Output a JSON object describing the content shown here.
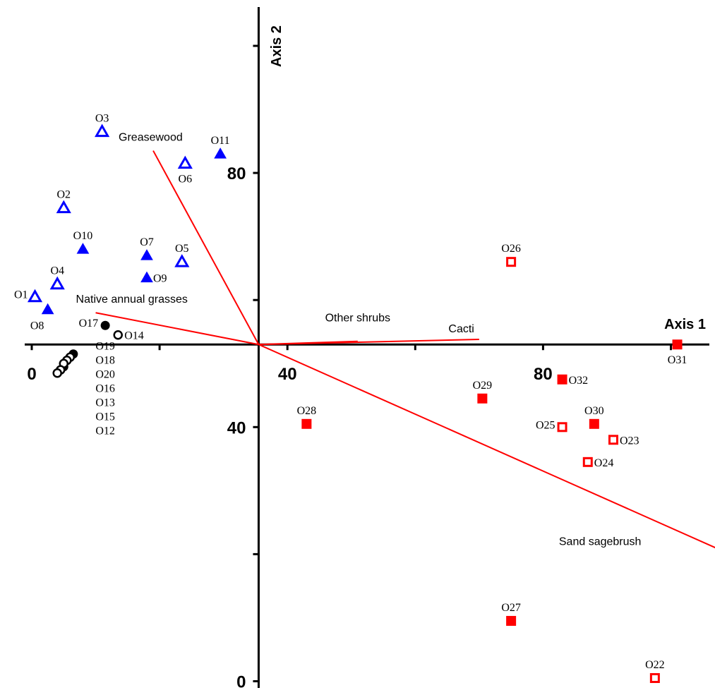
{
  "chart_data": {
    "type": "scatter",
    "title": "",
    "xlabel": "Axis 1",
    "ylabel": "Axis 2",
    "xlim": [
      -4,
      103
    ],
    "ylim": [
      -2,
      106
    ],
    "x_ticks": [
      0,
      40,
      80
    ],
    "y_ticks": [
      0,
      40,
      80
    ],
    "axis_origin": {
      "x": 35.5,
      "y": 53
    },
    "grid": false,
    "legend": "none",
    "colors": {
      "blue": "#0000ff",
      "red": "#ff0000",
      "black": "#000000"
    },
    "series": [
      {
        "group": "blue",
        "marker": "triangle",
        "filled": false,
        "points": [
          {
            "label": "O1",
            "x": 0.5,
            "y": 60.5,
            "label_pos": "left"
          },
          {
            "label": "O2",
            "x": 5,
            "y": 74.5,
            "label_pos": "above"
          },
          {
            "label": "O3",
            "x": 11,
            "y": 86.5,
            "label_pos": "above"
          },
          {
            "label": "O4",
            "x": 4,
            "y": 62.5,
            "label_pos": "above"
          },
          {
            "label": "O5",
            "x": 23.5,
            "y": 66,
            "label_pos": "above"
          },
          {
            "label": "O6",
            "x": 24,
            "y": 81.5,
            "label_pos": "below"
          }
        ]
      },
      {
        "group": "blue",
        "marker": "triangle",
        "filled": true,
        "points": [
          {
            "label": "O7",
            "x": 18,
            "y": 67,
            "label_pos": "above"
          },
          {
            "label": "O8",
            "x": 2.5,
            "y": 58.5,
            "label_pos": "below-left"
          },
          {
            "label": "O9",
            "x": 18,
            "y": 63.5,
            "label_pos": "right"
          },
          {
            "label": "O10",
            "x": 8,
            "y": 68,
            "label_pos": "above"
          },
          {
            "label": "O11",
            "x": 29.5,
            "y": 83,
            "label_pos": "above"
          }
        ]
      },
      {
        "group": "black",
        "marker": "circle",
        "filled": true,
        "points": [
          {
            "label": "O17",
            "x": 11.5,
            "y": 56,
            "label_pos": "left"
          },
          {
            "label": "O19",
            "x": 6.5,
            "y": 51.5,
            "label_pos": "none"
          },
          {
            "label": "O13",
            "x": 5,
            "y": 49.5,
            "label_pos": "none"
          }
        ]
      },
      {
        "group": "black",
        "marker": "circle",
        "filled": false,
        "points": [
          {
            "label": "O14",
            "x": 13.5,
            "y": 54.5,
            "label_pos": "right"
          },
          {
            "label": "O18",
            "x": 6,
            "y": 51,
            "label_pos": "none"
          },
          {
            "label": "O20",
            "x": 5.5,
            "y": 50.5,
            "label_pos": "none"
          },
          {
            "label": "O16",
            "x": 5,
            "y": 50,
            "label_pos": "none"
          },
          {
            "label": "O15",
            "x": 4.5,
            "y": 49,
            "label_pos": "none"
          },
          {
            "label": "O12",
            "x": 4,
            "y": 48.5,
            "label_pos": "none"
          }
        ]
      },
      {
        "group": "red",
        "marker": "square",
        "filled": true,
        "points": [
          {
            "label": "O27",
            "x": 75,
            "y": 9.5,
            "label_pos": "above"
          },
          {
            "label": "O28",
            "x": 43,
            "y": 40.5,
            "label_pos": "above"
          },
          {
            "label": "O29",
            "x": 70.5,
            "y": 44.5,
            "label_pos": "above"
          },
          {
            "label": "O30",
            "x": 88,
            "y": 40.5,
            "label_pos": "above"
          },
          {
            "label": "O31",
            "x": 101,
            "y": 53,
            "label_pos": "below"
          },
          {
            "label": "O32",
            "x": 83,
            "y": 47.5,
            "label_pos": "right"
          }
        ]
      },
      {
        "group": "red",
        "marker": "square",
        "filled": false,
        "points": [
          {
            "label": "O22",
            "x": 97.5,
            "y": 0.5,
            "label_pos": "above"
          },
          {
            "label": "O23",
            "x": 91,
            "y": 38,
            "label_pos": "right"
          },
          {
            "label": "O24",
            "x": 87,
            "y": 34.5,
            "label_pos": "right"
          },
          {
            "label": "O25",
            "x": 83,
            "y": 40,
            "label_pos": "left"
          },
          {
            "label": "O26",
            "x": 75,
            "y": 66,
            "label_pos": "above"
          }
        ]
      }
    ],
    "stacked_labels": [
      "O19",
      "O18",
      "O20",
      "O16",
      "O13",
      "O15",
      "O12"
    ],
    "vectors": [
      {
        "label": "Greasewood",
        "x": 19,
        "y": 83.5,
        "label_anchor": "start"
      },
      {
        "label": "Native annual grasses",
        "x": 10,
        "y": 58,
        "label_anchor": "start"
      },
      {
        "label": "Other shrubs",
        "x": 51,
        "y": 53.5,
        "label_anchor": "middle"
      },
      {
        "label": "Cacti",
        "x": 70,
        "y": 53.8,
        "label_anchor": "end"
      },
      {
        "label": "Sand sagebrush",
        "x": 107,
        "y": 21,
        "label_anchor": "start"
      }
    ]
  }
}
